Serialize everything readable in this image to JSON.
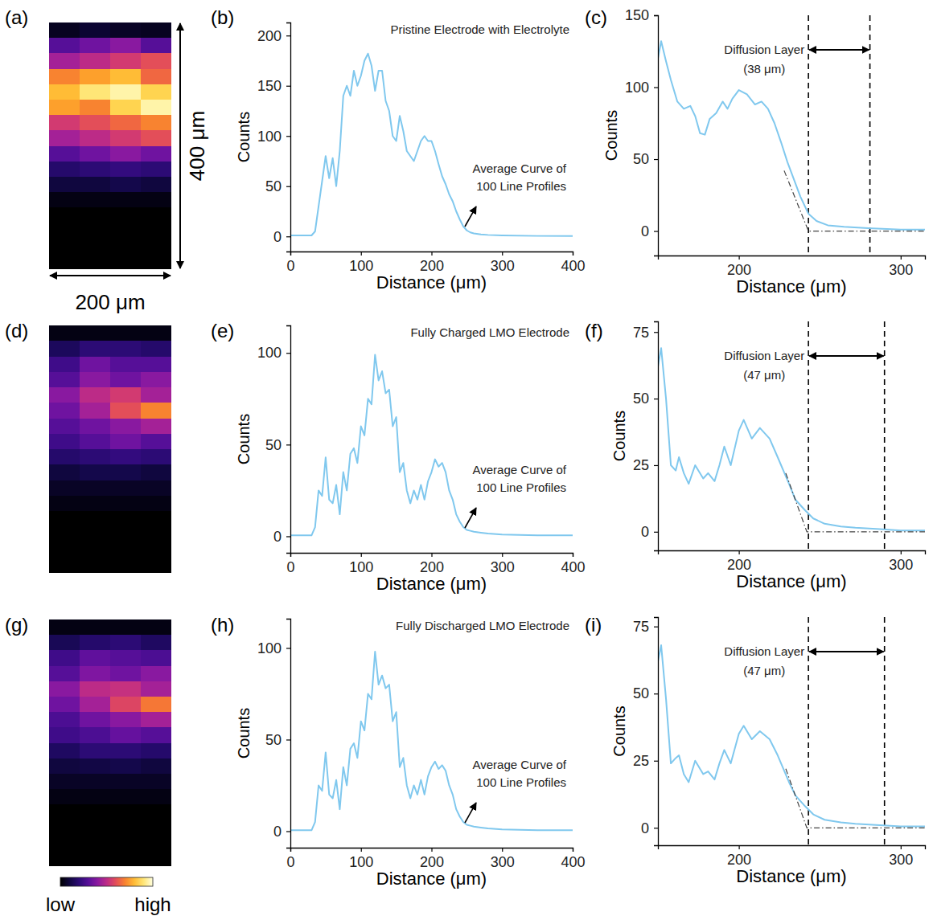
{
  "chart_data": [
    {
      "type": "heatmap",
      "panel_label": "(a)",
      "xlim": [
        0,
        200
      ],
      "ylim": [
        0,
        400
      ],
      "zlim": [
        0,
        100
      ],
      "tick_labels": false,
      "scale_bars": {
        "y": {
          "value": 400,
          "label": "400 μm"
        },
        "x": {
          "value": 200,
          "label": "200 μm"
        }
      },
      "cells": [
        [
          5,
          8,
          6,
          5
        ],
        [
          30,
          35,
          40,
          30
        ],
        [
          45,
          50,
          55,
          60
        ],
        [
          70,
          75,
          80,
          65
        ],
        [
          80,
          90,
          95,
          85
        ],
        [
          75,
          70,
          85,
          95
        ],
        [
          55,
          60,
          65,
          70
        ],
        [
          45,
          50,
          55,
          60
        ],
        [
          30,
          35,
          40,
          35
        ],
        [
          18,
          20,
          22,
          20
        ],
        [
          10,
          10,
          12,
          10
        ],
        [
          3,
          3,
          3,
          3
        ],
        [
          0,
          0,
          0,
          0
        ],
        [
          0,
          0,
          0,
          0
        ],
        [
          0,
          0,
          0,
          0
        ],
        [
          0,
          0,
          0,
          0
        ]
      ]
    },
    {
      "type": "line",
      "panel_label": "(b)",
      "title": "Pristine Electrode with Electrolyte",
      "x_label": "Distance (μm)",
      "y_label": "Counts",
      "annotations": [
        "Average Curve of 100 Line Profiles"
      ],
      "xlim": [
        0,
        400
      ],
      "xticks": [
        0,
        100,
        200,
        300,
        400
      ],
      "ylim": [
        -15,
        213
      ],
      "yticks": [
        0,
        50,
        100,
        150,
        200
      ],
      "series": [
        {
          "color": "#80c8ee",
          "x": [
            0,
            5,
            10,
            15,
            20,
            25,
            30,
            35,
            40,
            45,
            50,
            55,
            60,
            65,
            70,
            75,
            80,
            85,
            90,
            95,
            100,
            105,
            110,
            115,
            120,
            125,
            130,
            135,
            140,
            145,
            150,
            155,
            160,
            165,
            170,
            175,
            180,
            185,
            190,
            195,
            200,
            205,
            210,
            215,
            220,
            225,
            230,
            235,
            240,
            245,
            250,
            255,
            260,
            270,
            280,
            300,
            350,
            400
          ],
          "values": [
            1,
            1,
            1,
            1,
            1,
            1,
            1,
            5,
            30,
            55,
            80,
            58,
            78,
            50,
            85,
            140,
            150,
            140,
            165,
            150,
            160,
            175,
            182,
            170,
            145,
            165,
            165,
            135,
            125,
            100,
            95,
            120,
            105,
            85,
            80,
            75,
            85,
            95,
            100,
            95,
            95,
            85,
            72,
            60,
            52,
            42,
            35,
            25,
            17,
            10,
            6,
            4,
            3,
            2,
            1.5,
            1,
            0.5,
            0.5
          ]
        }
      ]
    },
    {
      "type": "line",
      "panel_label": "(c)",
      "x_label": "Distance (μm)",
      "y_label": "Counts",
      "xlim": [
        150,
        315
      ],
      "xticks": [
        200,
        300
      ],
      "ylim": [
        -17,
        150
      ],
      "yticks": [
        0,
        50,
        100,
        150
      ],
      "diffusion_layer": {
        "start": 243,
        "end": 281,
        "label": "Diffusion Layer",
        "width_label": "(38 μm)"
      },
      "series": [
        {
          "color": "#80c8ee",
          "x": [
            150,
            152,
            155,
            158,
            162,
            166,
            170,
            173,
            176,
            179,
            182,
            186,
            190,
            193,
            196,
            200,
            205,
            210,
            214,
            218,
            222,
            226,
            230,
            234,
            238,
            243,
            248,
            255,
            265,
            280,
            300,
            315
          ],
          "values": [
            120,
            132,
            118,
            105,
            90,
            85,
            87,
            80,
            68,
            67,
            78,
            82,
            90,
            85,
            92,
            98,
            95,
            88,
            90,
            85,
            75,
            62,
            48,
            36,
            24,
            12,
            7,
            4,
            3,
            2,
            1,
            1
          ]
        },
        {
          "color": "#444444",
          "line_style": "dashdot",
          "x": [
            228,
            243,
            315
          ],
          "values": [
            42,
            0,
            0
          ]
        }
      ]
    },
    {
      "type": "heatmap",
      "panel_label": "(d)",
      "xlim": [
        0,
        200
      ],
      "ylim": [
        0,
        400
      ],
      "zlim": [
        0,
        100
      ],
      "tick_labels": false,
      "cells": [
        [
          3,
          3,
          3,
          3
        ],
        [
          15,
          20,
          20,
          18
        ],
        [
          25,
          35,
          30,
          30
        ],
        [
          30,
          40,
          35,
          40
        ],
        [
          40,
          50,
          55,
          45
        ],
        [
          35,
          45,
          60,
          70
        ],
        [
          30,
          35,
          40,
          45
        ],
        [
          25,
          30,
          35,
          30
        ],
        [
          18,
          20,
          22,
          20
        ],
        [
          10,
          12,
          12,
          10
        ],
        [
          6,
          6,
          6,
          6
        ],
        [
          3,
          3,
          3,
          3
        ],
        [
          0,
          0,
          0,
          0
        ],
        [
          0,
          0,
          0,
          0
        ],
        [
          0,
          0,
          0,
          0
        ],
        [
          0,
          0,
          0,
          0
        ]
      ]
    },
    {
      "type": "line",
      "panel_label": "(e)",
      "title": "Fully Charged LMO Electrode",
      "x_label": "Distance (μm)",
      "y_label": "Counts",
      "annotations": [
        "Average Curve of 100 Line Profiles"
      ],
      "xlim": [
        0,
        400
      ],
      "xticks": [
        0,
        100,
        200,
        300,
        400
      ],
      "ylim": [
        -9,
        115
      ],
      "yticks": [
        0,
        50,
        100
      ],
      "series": [
        {
          "color": "#80c8ee",
          "x": [
            0,
            5,
            10,
            15,
            20,
            25,
            30,
            35,
            40,
            45,
            50,
            55,
            60,
            65,
            70,
            75,
            80,
            85,
            90,
            95,
            100,
            105,
            110,
            115,
            120,
            125,
            130,
            135,
            140,
            145,
            150,
            155,
            160,
            165,
            170,
            175,
            180,
            185,
            190,
            195,
            200,
            205,
            210,
            215,
            220,
            225,
            230,
            235,
            240,
            245,
            250,
            255,
            260,
            270,
            280,
            300,
            350,
            400
          ],
          "values": [
            0.5,
            0.5,
            0.5,
            0.5,
            0.5,
            0.5,
            0.5,
            5,
            25,
            22,
            43,
            20,
            18,
            28,
            12,
            35,
            25,
            45,
            48,
            40,
            60,
            55,
            75,
            72,
            99,
            85,
            90,
            78,
            80,
            60,
            65,
            35,
            40,
            25,
            18,
            25,
            20,
            28,
            20,
            30,
            35,
            42,
            38,
            40,
            35,
            25,
            20,
            12,
            8,
            5,
            3.5,
            3,
            2.5,
            2,
            1.5,
            1,
            0.5,
            0.5
          ]
        }
      ]
    },
    {
      "type": "line",
      "panel_label": "(f)",
      "x_label": "Distance (μm)",
      "y_label": "Counts",
      "xlim": [
        150,
        315
      ],
      "xticks": [
        200,
        300
      ],
      "ylim": [
        -7,
        79
      ],
      "yticks": [
        0,
        25,
        50,
        75
      ],
      "diffusion_layer": {
        "start": 243,
        "end": 290,
        "label": "Diffusion Layer",
        "width_label": "(47 μm)"
      },
      "series": [
        {
          "color": "#80c8ee",
          "x": [
            150,
            152,
            155,
            158,
            161,
            163,
            166,
            169,
            173,
            178,
            181,
            185,
            188,
            191,
            195,
            200,
            203,
            208,
            213,
            219,
            224,
            231,
            235,
            241,
            246,
            253,
            263,
            272,
            287,
            300,
            315
          ],
          "values": [
            62,
            69,
            50,
            25,
            23,
            28,
            22,
            18,
            25,
            20,
            22,
            19,
            25,
            32,
            25,
            38,
            42,
            35,
            39,
            35,
            28,
            18,
            12,
            8,
            5,
            3,
            2,
            1.5,
            1,
            0.5,
            0.5
          ]
        },
        {
          "color": "#444444",
          "line_style": "dashdot",
          "x": [
            229,
            242,
            315
          ],
          "values": [
            22,
            0,
            0
          ]
        }
      ]
    },
    {
      "type": "heatmap",
      "panel_label": "(g)",
      "xlim": [
        0,
        200
      ],
      "ylim": [
        0,
        400
      ],
      "zlim": [
        0,
        100
      ],
      "tick_labels": false,
      "colorbar": {
        "ticks": [
          {
            "value": 0,
            "label": "low"
          },
          {
            "value": 100,
            "label": "high"
          }
        ]
      },
      "cells": [
        [
          3,
          3,
          3,
          3
        ],
        [
          14,
          18,
          20,
          16
        ],
        [
          25,
          32,
          30,
          28
        ],
        [
          30,
          38,
          35,
          40
        ],
        [
          40,
          50,
          52,
          45
        ],
        [
          35,
          45,
          58,
          68
        ],
        [
          28,
          35,
          40,
          45
        ],
        [
          25,
          28,
          33,
          30
        ],
        [
          16,
          20,
          20,
          18
        ],
        [
          10,
          11,
          12,
          10
        ],
        [
          6,
          6,
          6,
          6
        ],
        [
          3,
          3,
          3,
          3
        ],
        [
          0,
          0,
          0,
          0
        ],
        [
          0,
          0,
          0,
          0
        ],
        [
          0,
          0,
          0,
          0
        ],
        [
          0,
          0,
          0,
          0
        ]
      ]
    },
    {
      "type": "line",
      "panel_label": "(h)",
      "title": "Fully Discharged LMO Electrode",
      "x_label": "Distance (μm)",
      "y_label": "Counts",
      "annotations": [
        "Average Curve of 100 Line Profiles"
      ],
      "xlim": [
        0,
        400
      ],
      "xticks": [
        0,
        100,
        200,
        300,
        400
      ],
      "ylim": [
        -9,
        116
      ],
      "yticks": [
        0,
        50,
        100
      ],
      "series": [
        {
          "color": "#80c8ee",
          "x": [
            0,
            5,
            10,
            15,
            20,
            25,
            30,
            35,
            40,
            45,
            50,
            55,
            60,
            65,
            70,
            75,
            80,
            85,
            90,
            95,
            100,
            105,
            110,
            115,
            120,
            125,
            130,
            135,
            140,
            145,
            150,
            155,
            160,
            165,
            170,
            175,
            180,
            185,
            190,
            195,
            200,
            205,
            210,
            215,
            220,
            225,
            230,
            235,
            240,
            245,
            250,
            255,
            260,
            270,
            280,
            300,
            350,
            400
          ],
          "values": [
            0.5,
            0.5,
            0.5,
            0.5,
            0.5,
            0.5,
            0.5,
            5,
            25,
            22,
            43,
            20,
            18,
            28,
            12,
            35,
            25,
            45,
            48,
            40,
            60,
            55,
            75,
            72,
            98,
            80,
            85,
            78,
            80,
            60,
            65,
            35,
            40,
            25,
            18,
            25,
            20,
            28,
            20,
            30,
            35,
            38,
            34,
            36,
            33,
            25,
            20,
            12,
            8,
            5,
            3.5,
            3,
            2.5,
            2,
            1.5,
            1,
            0.5,
            0.5
          ]
        }
      ]
    },
    {
      "type": "line",
      "panel_label": "(i)",
      "x_label": "Distance (μm)",
      "y_label": "Counts",
      "xlim": [
        150,
        315
      ],
      "xticks": [
        200,
        300
      ],
      "ylim": [
        -6.5,
        78.5
      ],
      "yticks": [
        0,
        25,
        50,
        75
      ],
      "diffusion_layer": {
        "start": 243,
        "end": 290,
        "label": "Diffusion Layer",
        "width_label": "(47 μm)"
      },
      "series": [
        {
          "color": "#80c8ee",
          "x": [
            150,
            152,
            155,
            158,
            161,
            163,
            166,
            169,
            173,
            178,
            181,
            185,
            188,
            191,
            195,
            200,
            203,
            208,
            213,
            219,
            224,
            231,
            235,
            241,
            246,
            253,
            263,
            272,
            287,
            300,
            315
          ],
          "values": [
            62,
            68,
            48,
            24,
            26,
            27,
            20,
            17,
            25,
            20,
            21,
            18,
            24,
            29,
            24,
            35,
            38,
            33,
            36,
            33,
            27,
            17,
            12,
            8,
            5,
            3,
            2,
            1.5,
            1,
            0.5,
            0.5
          ]
        },
        {
          "color": "#444444",
          "line_style": "dashdot",
          "x": [
            229,
            242,
            315
          ],
          "values": [
            22,
            0,
            0
          ]
        }
      ]
    }
  ]
}
